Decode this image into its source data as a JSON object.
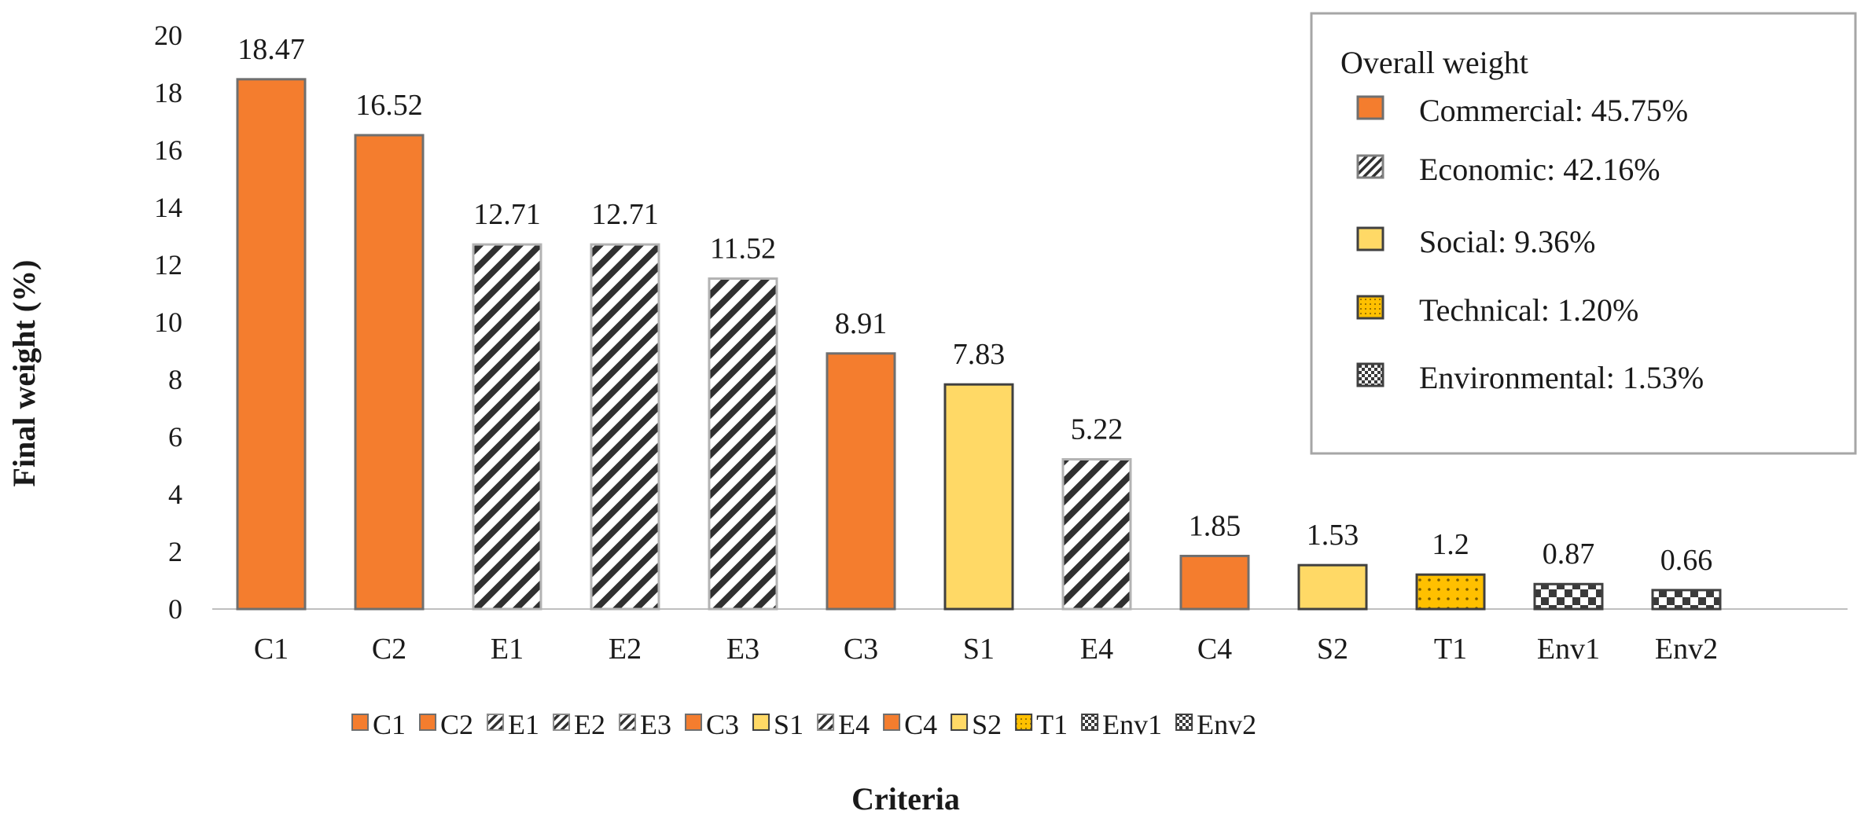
{
  "chart_data": {
    "type": "bar",
    "ylabel": "Final weight (%)",
    "xlabel": "Criteria",
    "ylim": [
      0,
      20
    ],
    "yticks": [
      "0",
      "2",
      "4",
      "6",
      "8",
      "10",
      "12",
      "14",
      "16",
      "18",
      "20"
    ],
    "categories": [
      "C1",
      "C2",
      "E1",
      "E2",
      "E3",
      "C3",
      "S1",
      "E4",
      "C4",
      "S2",
      "T1",
      "Env1",
      "Env2"
    ],
    "values": [
      18.47,
      16.52,
      12.71,
      12.71,
      11.52,
      8.91,
      7.83,
      5.22,
      1.85,
      1.53,
      1.2,
      0.87,
      0.66
    ],
    "value_labels": [
      "18.47",
      "16.52",
      "12.71",
      "12.71",
      "11.52",
      "8.91",
      "7.83",
      "5.22",
      "1.85",
      "1.53",
      "1.2",
      "0.87",
      "0.66"
    ],
    "groups": [
      "commercial",
      "commercial",
      "economic",
      "economic",
      "economic",
      "commercial",
      "social",
      "economic",
      "commercial",
      "social",
      "technical",
      "environmental",
      "environmental"
    ],
    "group_styles": {
      "commercial": {
        "fill": "#F47D2E",
        "stroke": "#6f6f6f",
        "pattern": "solid"
      },
      "economic": {
        "fill": "#ffffff",
        "stroke": "#b3b3b3",
        "pattern": "diagonal-stripes",
        "pattern_color": "#303030"
      },
      "social": {
        "fill": "#FFD966",
        "stroke": "#404040",
        "pattern": "solid"
      },
      "technical": {
        "fill": "#FFC000",
        "stroke": "#404040",
        "pattern": "dots",
        "pattern_color": "#7a5a00"
      },
      "environmental": {
        "fill": "#ffffff",
        "stroke": "#404040",
        "pattern": "checkerboard",
        "pattern_color": "#3a3a3a"
      }
    },
    "legend_box": {
      "title": "Overall weight",
      "entries": [
        {
          "group": "commercial",
          "label": "Commercial: 45.75%"
        },
        {
          "group": "economic",
          "label": "Economic: 42.16%"
        },
        {
          "group": "social",
          "label": "Social: 9.36%"
        },
        {
          "group": "technical",
          "label": "Technical: 1.20%"
        },
        {
          "group": "environmental",
          "label": "Environmental: 1.53%"
        }
      ],
      "placement": "top-right"
    },
    "bottom_legend": {
      "placement": "bottom",
      "entries": [
        "C1",
        "C2",
        "E1",
        "E2",
        "E3",
        "C3",
        "S1",
        "E4",
        "C4",
        "S2",
        "T1",
        "Env1",
        "Env2"
      ]
    },
    "grid": false
  }
}
